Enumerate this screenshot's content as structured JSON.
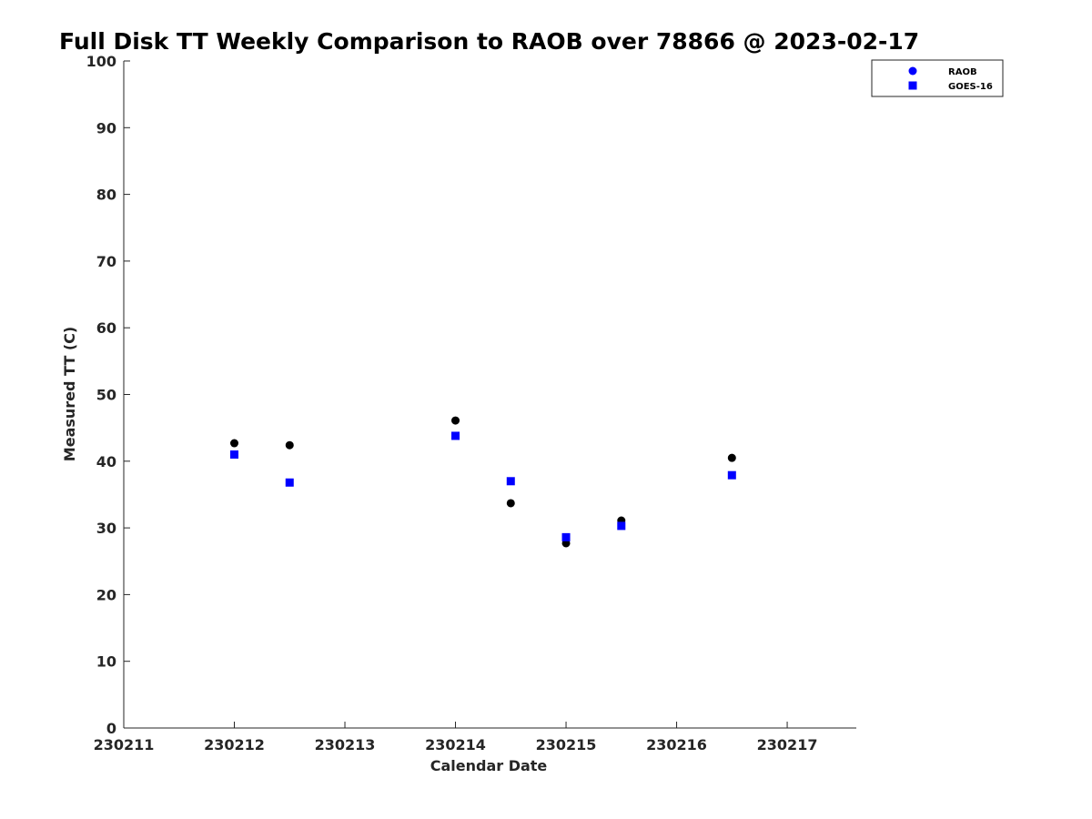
{
  "chart_data": {
    "type": "scatter",
    "title": "Full Disk TT Weekly Comparison to RAOB over 78866 @ 2023-02-17",
    "xlabel": "Calendar Date",
    "ylabel": "Measured TT (C)",
    "xlim": [
      "2023-02-11",
      "2023-02-17T15:00"
    ],
    "ylim": [
      0,
      100
    ],
    "x_ticks": [
      {
        "value": "2023-02-11",
        "label": "230211"
      },
      {
        "value": "2023-02-12",
        "label": "230212"
      },
      {
        "value": "2023-02-13",
        "label": "230213"
      },
      {
        "value": "2023-02-14",
        "label": "230214"
      },
      {
        "value": "2023-02-15",
        "label": "230215"
      },
      {
        "value": "2023-02-16",
        "label": "230216"
      },
      {
        "value": "2023-02-17",
        "label": "230217"
      }
    ],
    "y_ticks": [
      0,
      10,
      20,
      30,
      40,
      50,
      60,
      70,
      80,
      90,
      100
    ],
    "grid": false,
    "legend_position": "top-right",
    "series": [
      {
        "name": "RAOB",
        "marker": "circle",
        "color": "#000000",
        "legend_color": "#0000ff",
        "points": [
          {
            "x": "2023-02-12T00:00",
            "y": 42.7
          },
          {
            "x": "2023-02-12T12:00",
            "y": 42.4
          },
          {
            "x": "2023-02-14T00:00",
            "y": 46.1
          },
          {
            "x": "2023-02-14T12:00",
            "y": 33.7
          },
          {
            "x": "2023-02-15T00:00",
            "y": 27.7
          },
          {
            "x": "2023-02-15T12:00",
            "y": 31.1
          },
          {
            "x": "2023-02-16T12:00",
            "y": 40.5
          }
        ]
      },
      {
        "name": "GOES-16",
        "marker": "square",
        "color": "#0000ff",
        "legend_color": "#0000ff",
        "points": [
          {
            "x": "2023-02-12T00:00",
            "y": 41.0
          },
          {
            "x": "2023-02-12T12:00",
            "y": 36.8
          },
          {
            "x": "2023-02-14T00:00",
            "y": 43.8
          },
          {
            "x": "2023-02-14T12:00",
            "y": 37.0
          },
          {
            "x": "2023-02-15T00:00",
            "y": 28.6
          },
          {
            "x": "2023-02-15T12:00",
            "y": 30.3
          },
          {
            "x": "2023-02-16T12:00",
            "y": 37.9
          }
        ]
      }
    ]
  }
}
